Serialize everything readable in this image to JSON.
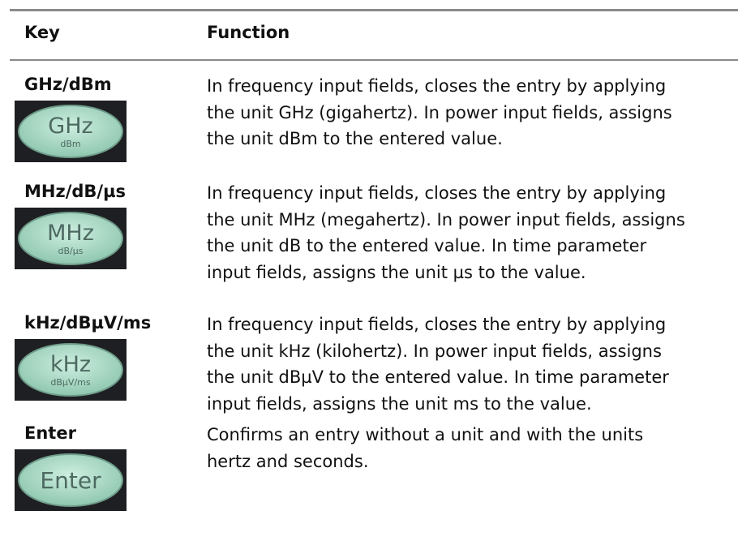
{
  "header": {
    "key": "Key",
    "function": "Function"
  },
  "rows": [
    {
      "key": "GHz/dBm",
      "button": {
        "label": "GHz",
        "sublabel": "dBm"
      },
      "lines": [
        "In frequency input fields, closes the entry by applying",
        "the unit GHz (gigahertz). In power input fields, assigns",
        "the unit dBm to the entered value."
      ]
    },
    {
      "key": "MHz/dB/µs",
      "button": {
        "label": "MHz",
        "sublabel": "dB/µs"
      },
      "lines": [
        "In frequency input fields, closes the entry by applying",
        "the unit MHz (megahertz). In power input fields, assigns",
        "the unit dB to the entered value. In time parameter",
        "input fields, assigns the unit µs to the value."
      ]
    },
    {
      "key": "kHz/dBµV/ms",
      "button": {
        "label": "kHz",
        "sublabel": "dBµV/ms"
      },
      "lines": [
        "In frequency input fields, closes the entry by applying",
        "the unit kHz (kilohertz). In power input fields, assigns",
        "the unit dBµV to the entered value. In time parameter",
        "input fields, assigns the unit ms to the value."
      ]
    },
    {
      "key": "Enter",
      "button": {
        "label": "Enter"
      },
      "lines": [
        "Confirms an entry without a unit and with the units",
        "hertz and seconds."
      ]
    }
  ]
}
